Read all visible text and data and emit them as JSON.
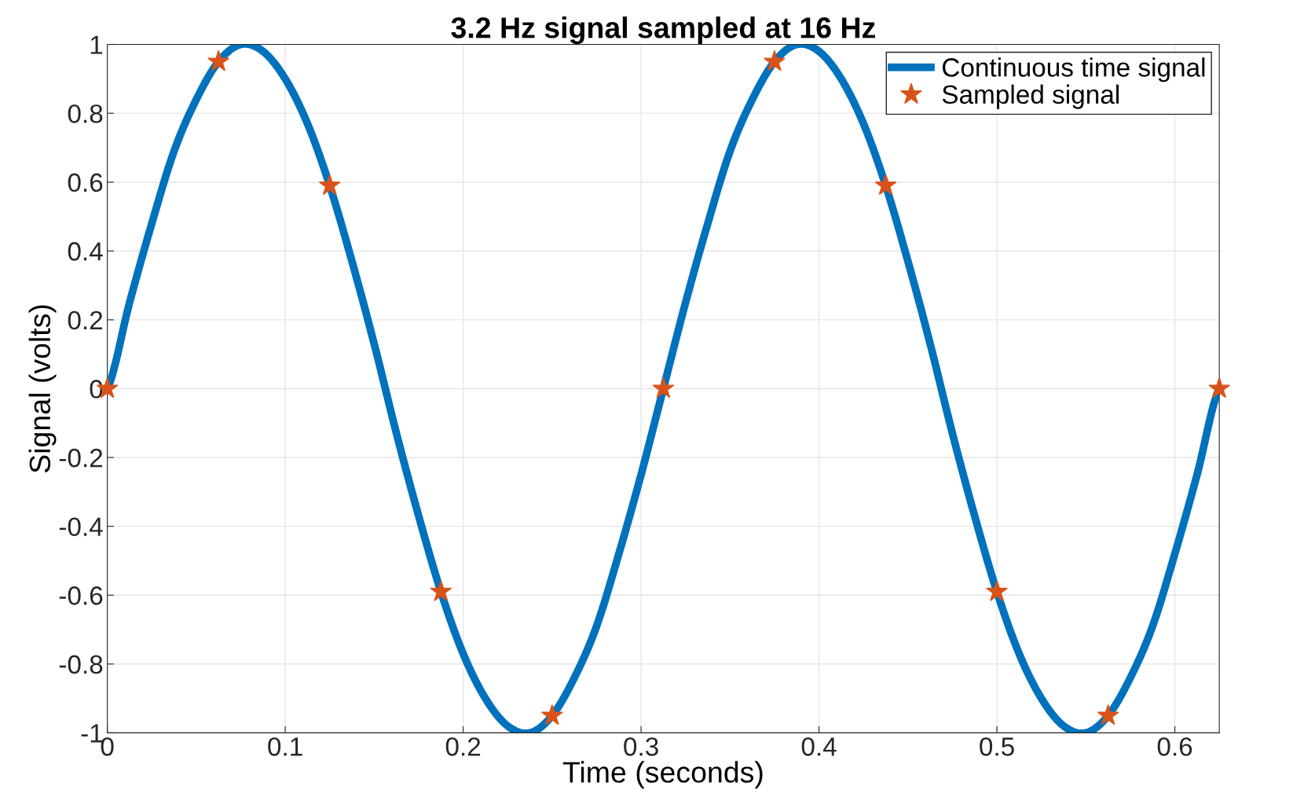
{
  "chart_data": {
    "type": "line",
    "title": "3.2 Hz signal sampled at 16 Hz",
    "xlabel": "Time (seconds)",
    "ylabel": "Signal (volts)",
    "xlim": [
      0,
      0.625
    ],
    "xticks": [
      0,
      0.1,
      0.2,
      0.3,
      0.4,
      0.5,
      0.6
    ],
    "ylim": [
      -1,
      1
    ],
    "yticks": [
      -1,
      -0.8,
      -0.6,
      -0.4,
      -0.2,
      0,
      0.2,
      0.4,
      0.6,
      0.8,
      1
    ],
    "grid": true,
    "legend": "top right",
    "series": [
      {
        "name": "Continuous time signal",
        "type": "line",
        "color": "#0072bd",
        "marker": "none",
        "line_style": "solid",
        "x": [
          0,
          0.0125,
          0.025,
          0.0375,
          0.05,
          0.0625,
          0.075,
          0.0875,
          0.1,
          0.1125,
          0.125,
          0.1375,
          0.15,
          0.1625,
          0.175,
          0.1875,
          0.2,
          0.2125,
          0.225,
          0.2375,
          0.25,
          0.2625,
          0.275,
          0.2875,
          0.3,
          0.3125,
          0.325,
          0.3375,
          0.35,
          0.3625,
          0.375,
          0.3875,
          0.4,
          0.4125,
          0.425,
          0.4375,
          0.45,
          0.4625,
          0.475,
          0.4875,
          0.5,
          0.5125,
          0.525,
          0.5375,
          0.55,
          0.5625,
          0.575,
          0.5875,
          0.6,
          0.6125,
          0.625
        ],
        "values": [
          0,
          0.25,
          0.48,
          0.69,
          0.84,
          0.95,
          1.0,
          0.98,
          0.9,
          0.77,
          0.59,
          0.37,
          0.13,
          -0.13,
          -0.37,
          -0.59,
          -0.77,
          -0.9,
          -0.98,
          -1.0,
          -0.95,
          -0.84,
          -0.69,
          -0.48,
          -0.25,
          0,
          0.25,
          0.48,
          0.69,
          0.84,
          0.95,
          1.0,
          0.98,
          0.9,
          0.77,
          0.59,
          0.37,
          0.13,
          -0.13,
          -0.37,
          -0.59,
          -0.77,
          -0.9,
          -0.98,
          -1.0,
          -0.95,
          -0.84,
          -0.69,
          -0.48,
          -0.25,
          0
        ]
      },
      {
        "name": "Sampled signal",
        "type": "scatter",
        "color": "#d95319",
        "marker": "star",
        "x": [
          0,
          0.0625,
          0.125,
          0.1875,
          0.25,
          0.3125,
          0.375,
          0.4375,
          0.5,
          0.5625,
          0.625
        ],
        "values": [
          0,
          0.95,
          0.59,
          -0.59,
          -0.95,
          0,
          0.95,
          0.59,
          -0.59,
          -0.95,
          0
        ]
      }
    ]
  }
}
